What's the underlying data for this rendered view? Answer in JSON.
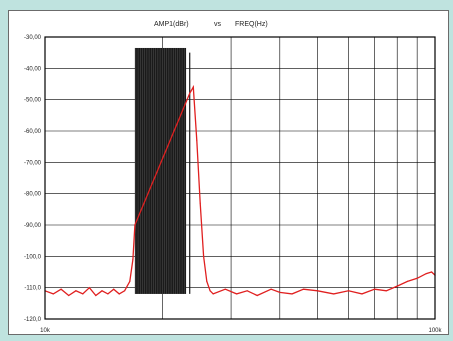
{
  "chart_data": {
    "type": "line",
    "title": "AMP1(dBr)   vs   FREQ(Hz)",
    "title_parts": [
      "AMP1(dBr)",
      "vs",
      "FREQ(Hz)"
    ],
    "xlabel": "",
    "ylabel": "",
    "x_scale": "log",
    "xlim": [
      10000,
      100000
    ],
    "ylim": [
      -120,
      -30
    ],
    "x_tick_labels": [
      "10k",
      "100k"
    ],
    "y_ticks": [
      -30,
      -40,
      -50,
      -60,
      -70,
      -80,
      -90,
      -100,
      -110,
      -120
    ],
    "y_tick_labels": [
      "-30,00",
      "-40,00",
      "-50,00",
      "-60,00",
      "-70,00",
      "-80,00",
      "-90,00",
      "-100,0",
      "-110,0",
      "-120,0"
    ],
    "grid": true,
    "series": [
      {
        "color": "#1a1a1a",
        "points": [
          [
            17000,
            -112
          ],
          [
            17000,
            -33.5
          ],
          [
            23000,
            -33.5
          ],
          [
            23500,
            -35
          ],
          [
            23500,
            -112
          ]
        ]
      },
      {
        "color": "#e02020",
        "points": [
          [
            10000,
            -111
          ],
          [
            10500,
            -112
          ],
          [
            11000,
            -110.5
          ],
          [
            11500,
            -112.5
          ],
          [
            12000,
            -111
          ],
          [
            12500,
            -112
          ],
          [
            13000,
            -110
          ],
          [
            13500,
            -112.5
          ],
          [
            14000,
            -111
          ],
          [
            14500,
            -112
          ],
          [
            15000,
            -110.5
          ],
          [
            15500,
            -112
          ],
          [
            16000,
            -111
          ],
          [
            16500,
            -108
          ],
          [
            16800,
            -101
          ],
          [
            17000,
            -90
          ],
          [
            23500,
            -48
          ],
          [
            24000,
            -46
          ],
          [
            24500,
            -63
          ],
          [
            25000,
            -83
          ],
          [
            25500,
            -100
          ],
          [
            26000,
            -108
          ],
          [
            26500,
            -111
          ],
          [
            27000,
            -112
          ],
          [
            29000,
            -110.5
          ],
          [
            31000,
            -112
          ],
          [
            33000,
            -111
          ],
          [
            35000,
            -112.5
          ],
          [
            38000,
            -110.5
          ],
          [
            40000,
            -111.5
          ],
          [
            43000,
            -112
          ],
          [
            46000,
            -110.5
          ],
          [
            50000,
            -111
          ],
          [
            55000,
            -112
          ],
          [
            60000,
            -111
          ],
          [
            65000,
            -112
          ],
          [
            70000,
            -110.5
          ],
          [
            75000,
            -111
          ],
          [
            80000,
            -109.5
          ],
          [
            85000,
            -108
          ],
          [
            90000,
            -107
          ],
          [
            95000,
            -105.5
          ],
          [
            98000,
            -105
          ],
          [
            100000,
            -106
          ]
        ]
      }
    ]
  }
}
